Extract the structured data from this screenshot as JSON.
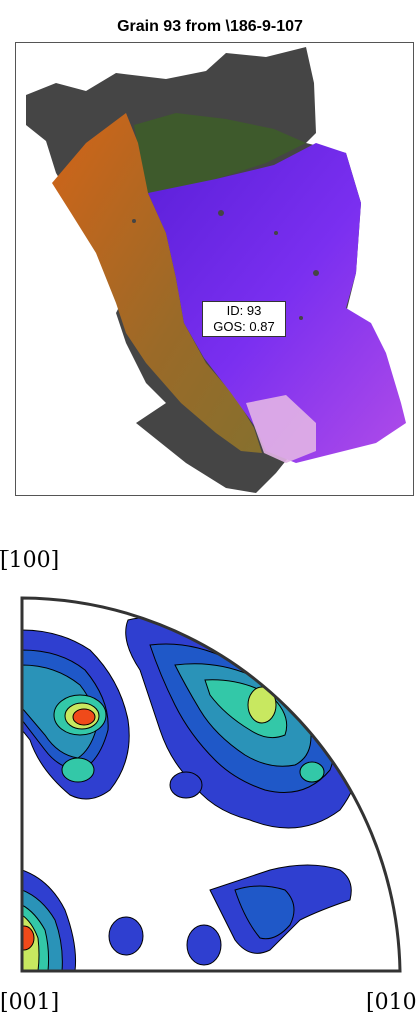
{
  "map": {
    "title": "Grain 93 from \\186-9-107",
    "label_line1": "ID: 93",
    "label_line2": "GOS: 0.87",
    "colors": {
      "unindexed": "#454545",
      "orange": "#c8621a",
      "olive": "#8d6a2a",
      "green": "#3e5a2c",
      "violet": "#6a26e6",
      "magenta": "#a33ae0",
      "pink": "#e8b0e0"
    }
  },
  "pole_figure": {
    "direction_labels": {
      "top": "[̅100]",
      "bottom_left": "[001]",
      "bottom_right": "[010"
    },
    "colors": {
      "low": "#2f3fd0",
      "mid_low": "#1f58c8",
      "mid": "#2a93b8",
      "mid_high": "#33c8a8",
      "high": "#c8e860",
      "peak": "#f04a1a"
    }
  }
}
